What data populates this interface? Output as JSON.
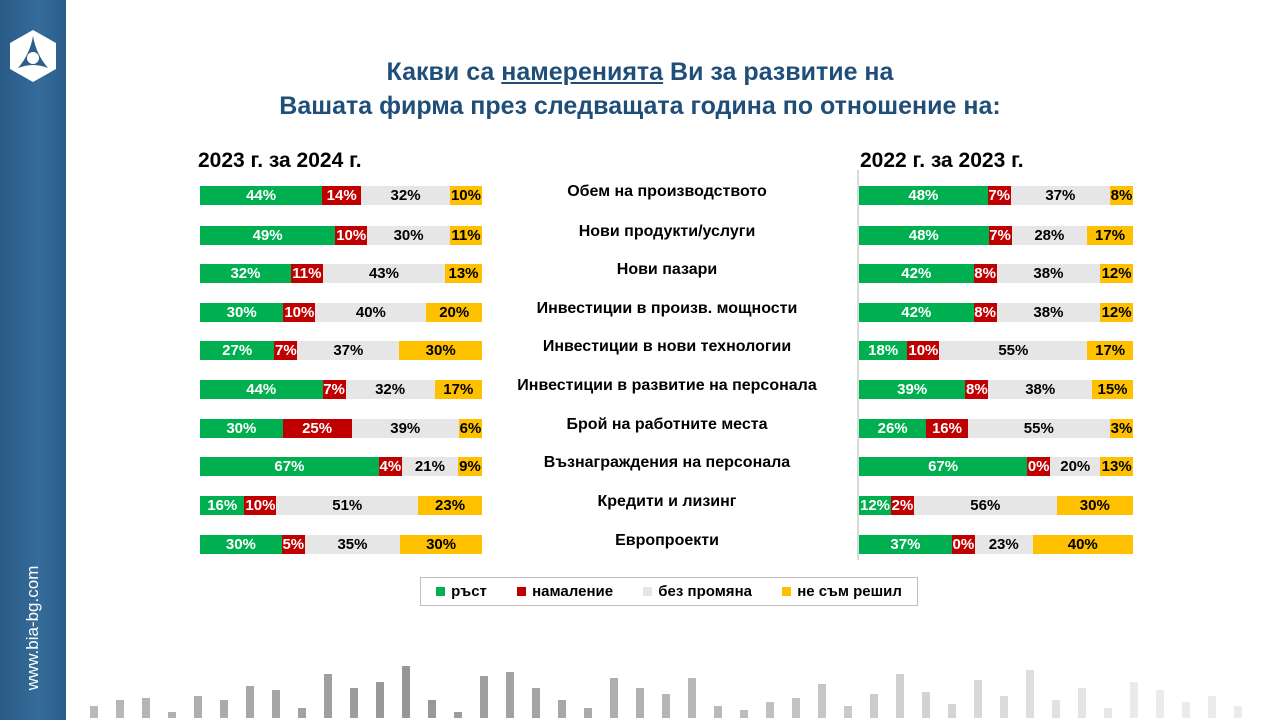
{
  "sidebar": {
    "website": "www.bia-bg.com",
    "logo": "bia-hexagon-logo"
  },
  "title": {
    "line1_pre": "Какви са ",
    "line1_underlined": "намеренията",
    "line1_post": " Ви за развитие на",
    "line2": "Вашата фирма през следващата година по отношение на:"
  },
  "colors": {
    "growth": "#00b050",
    "decrease": "#c00000",
    "no_change": "#e7e6e6",
    "undecided": "#ffc000",
    "title": "#1f4e79"
  },
  "chart_data": {
    "type": "bar",
    "stacked": true,
    "orientation": "horizontal",
    "categories": [
      "Обем на производството",
      "Нови продукти/услуги",
      "Нови пазари",
      "Инвестиции в произв. мощности",
      "Инвестиции в нови технологии",
      "Инвестиции в развитие на персонала",
      "Брой на работните места",
      "Възнаграждения на персонала",
      "Кредити и лизинг",
      "Европроекти"
    ],
    "legend": [
      "ръст",
      "намаление",
      "без промяна",
      "не съм решил"
    ],
    "legend_position": "bottom",
    "panels": [
      {
        "title": "2023 г. за 2024 г.",
        "series": [
          {
            "name": "ръст",
            "values": [
              44,
              49,
              32,
              30,
              27,
              44,
              30,
              67,
              16,
              30
            ]
          },
          {
            "name": "намаление",
            "values": [
              14,
              10,
              11,
              10,
              7,
              7,
              25,
              4,
              10,
              5
            ]
          },
          {
            "name": "без промяна",
            "values": [
              32,
              30,
              43,
              40,
              37,
              32,
              39,
              21,
              51,
              35
            ]
          },
          {
            "name": "не съм решил",
            "values": [
              10,
              11,
              13,
              20,
              30,
              17,
              6,
              9,
              23,
              30
            ]
          }
        ]
      },
      {
        "title": "2022 г. за 2023 г.",
        "series": [
          {
            "name": "ръст",
            "values": [
              48,
              48,
              42,
              42,
              18,
              39,
              26,
              67,
              12,
              37
            ]
          },
          {
            "name": "намаление",
            "values": [
              7,
              7,
              8,
              8,
              10,
              8,
              16,
              0,
              2,
              0
            ]
          },
          {
            "name": "без промяна",
            "values": [
              37,
              28,
              38,
              38,
              55,
              38,
              55,
              20,
              56,
              23
            ]
          },
          {
            "name": "не съм решил",
            "values": [
              8,
              17,
              12,
              12,
              17,
              15,
              3,
              13,
              30,
              40
            ]
          }
        ]
      }
    ]
  }
}
